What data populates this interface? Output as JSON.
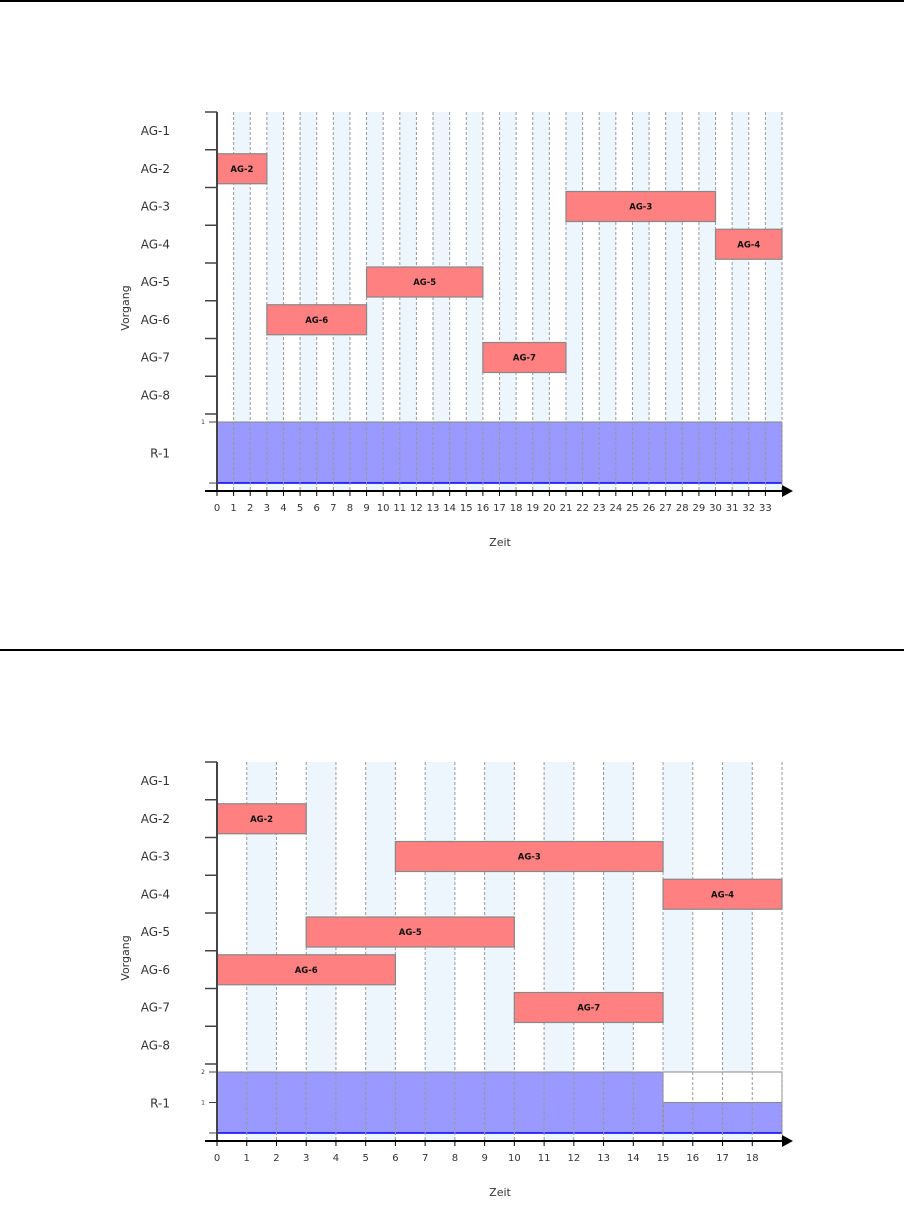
{
  "chart_data": [
    {
      "type": "gantt",
      "xlabel": "Zeit",
      "ylabel": "Vorgang",
      "xlim": [
        0,
        34
      ],
      "xticks": [
        0,
        1,
        2,
        3,
        4,
        5,
        6,
        7,
        8,
        9,
        10,
        11,
        12,
        13,
        14,
        15,
        16,
        17,
        18,
        19,
        20,
        21,
        22,
        23,
        24,
        25,
        26,
        27,
        28,
        29,
        30,
        31,
        32,
        33
      ],
      "rows": [
        "AG-1",
        "AG-2",
        "AG-3",
        "AG-4",
        "AG-5",
        "AG-6",
        "AG-7",
        "AG-8"
      ],
      "tasks": [
        {
          "row": "AG-2",
          "label": "AG-2",
          "start": 0,
          "end": 3
        },
        {
          "row": "AG-3",
          "label": "AG-3",
          "start": 21,
          "end": 30
        },
        {
          "row": "AG-4",
          "label": "AG-4",
          "start": 30,
          "end": 34
        },
        {
          "row": "AG-5",
          "label": "AG-5",
          "start": 9,
          "end": 16
        },
        {
          "row": "AG-6",
          "label": "AG-6",
          "start": 3,
          "end": 9
        },
        {
          "row": "AG-7",
          "label": "AG-7",
          "start": 16,
          "end": 21
        }
      ],
      "resource": {
        "label": "R-1",
        "capacity": 1,
        "yticks": [
          "1"
        ],
        "usage": [
          {
            "start": 0,
            "end": 34,
            "value": 1
          }
        ]
      },
      "colors": {
        "task": "#ff8080",
        "resource": "#9999ff",
        "stripe": "#edf5fd"
      }
    },
    {
      "type": "gantt",
      "xlabel": "Zeit",
      "ylabel": "Vorgang",
      "xlim": [
        0,
        19
      ],
      "xticks": [
        0,
        1,
        2,
        3,
        4,
        5,
        6,
        7,
        8,
        9,
        10,
        11,
        12,
        13,
        14,
        15,
        16,
        17,
        18
      ],
      "rows": [
        "AG-1",
        "AG-2",
        "AG-3",
        "AG-4",
        "AG-5",
        "AG-6",
        "AG-7",
        "AG-8"
      ],
      "tasks": [
        {
          "row": "AG-2",
          "label": "AG-2",
          "start": 0,
          "end": 3
        },
        {
          "row": "AG-3",
          "label": "AG-3",
          "start": 6,
          "end": 15
        },
        {
          "row": "AG-4",
          "label": "AG-4",
          "start": 15,
          "end": 19
        },
        {
          "row": "AG-5",
          "label": "AG-5",
          "start": 3,
          "end": 10
        },
        {
          "row": "AG-6",
          "label": "AG-6",
          "start": 0,
          "end": 6
        },
        {
          "row": "AG-7",
          "label": "AG-7",
          "start": 10,
          "end": 15
        }
      ],
      "resource": {
        "label": "R-1",
        "capacity": 2,
        "yticks": [
          "1",
          "2"
        ],
        "usage": [
          {
            "start": 0,
            "end": 15,
            "value": 2
          },
          {
            "start": 15,
            "end": 19,
            "value": 1
          }
        ]
      },
      "colors": {
        "task": "#ff8080",
        "resource": "#9999ff",
        "stripe": "#edf5fd"
      }
    }
  ]
}
